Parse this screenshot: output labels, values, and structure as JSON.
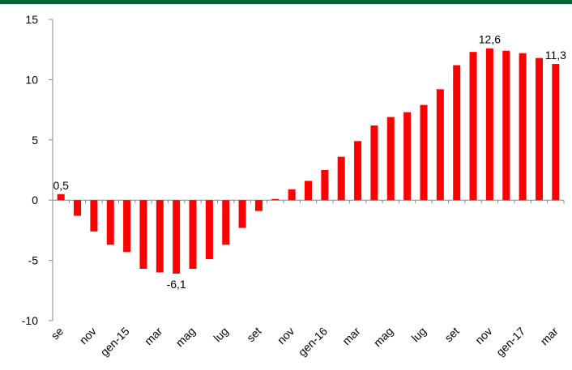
{
  "chart_data": {
    "type": "bar",
    "color": "#ff0000",
    "categories": [
      "se",
      null,
      "nov",
      null,
      "gen-15",
      null,
      "mar",
      null,
      "mag",
      null,
      "lug",
      null,
      "set",
      null,
      "nov",
      null,
      "gen-16",
      null,
      "mar",
      null,
      "mag",
      null,
      "lug",
      null,
      "set",
      null,
      "nov",
      null,
      "gen-17",
      null,
      "mar"
    ],
    "values": [
      0.5,
      -1.3,
      -2.6,
      -3.7,
      -4.3,
      -5.7,
      -6.0,
      -6.1,
      -5.7,
      -4.9,
      -3.7,
      -2.3,
      -0.9,
      0.1,
      0.9,
      1.6,
      2.5,
      3.6,
      4.9,
      6.2,
      6.9,
      7.3,
      7.9,
      9.2,
      11.2,
      12.3,
      12.6,
      12.4,
      12.2,
      11.8,
      11.3
    ],
    "value_labels": [
      "0,5",
      null,
      null,
      null,
      null,
      null,
      null,
      "-6,1",
      null,
      null,
      null,
      null,
      null,
      null,
      null,
      null,
      null,
      null,
      null,
      null,
      null,
      null,
      null,
      null,
      null,
      null,
      "12,6",
      null,
      null,
      null,
      "11,3"
    ],
    "ylim": [
      -10,
      15
    ],
    "yticks": [
      -10,
      -5,
      0,
      5,
      10,
      15
    ]
  }
}
